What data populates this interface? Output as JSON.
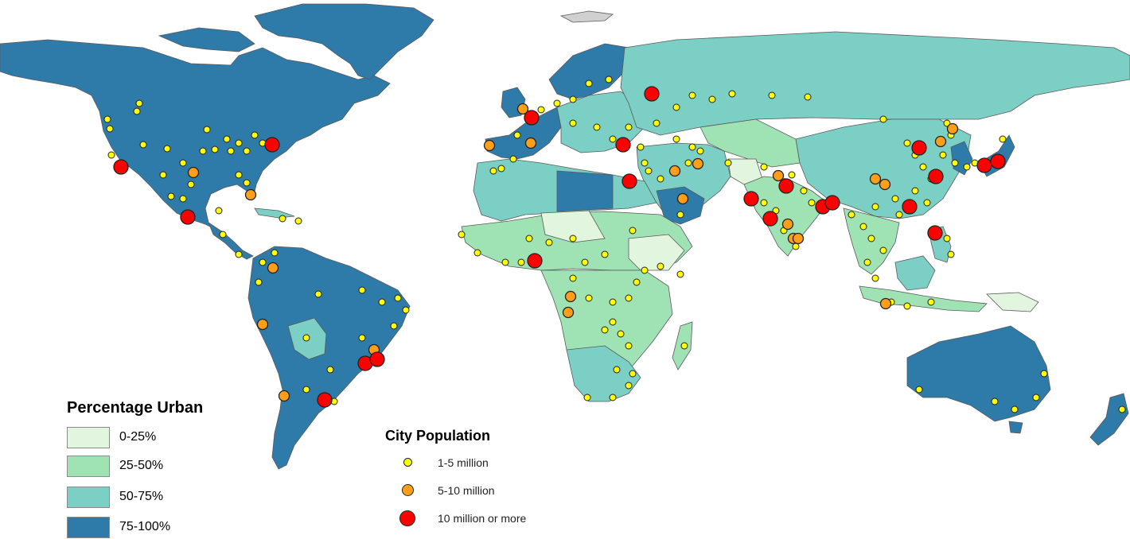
{
  "colors": {
    "ocean": "#ffffff",
    "border": "#5a5a5a",
    "urban_0_25": "#e2f5df",
    "urban_25_50": "#9fe3b4",
    "urban_50_75": "#7ccfc4",
    "urban_75_100": "#2e7aa8",
    "antarctic": "#d0d0d0",
    "city_small": "#ffff00",
    "city_medium": "#ff9f19",
    "city_large": "#ff0000",
    "city_outline": "#222222"
  },
  "legend_urban": {
    "title": "Percentage Urban",
    "classes": [
      {
        "label": "0-25%",
        "color": "#e2f5df"
      },
      {
        "label": "25-50%",
        "color": "#9fe3b4"
      },
      {
        "label": "50-75%",
        "color": "#7ccfc4"
      },
      {
        "label": "75-100%",
        "color": "#2e7aa8"
      }
    ]
  },
  "legend_city": {
    "title": "City Population",
    "classes": [
      {
        "label": "1-5 million",
        "color": "#ffff00"
      },
      {
        "label": "5-10 million",
        "color": "#ff9f19"
      },
      {
        "label": "10 million or more",
        "color": "#ff0000"
      }
    ]
  }
}
